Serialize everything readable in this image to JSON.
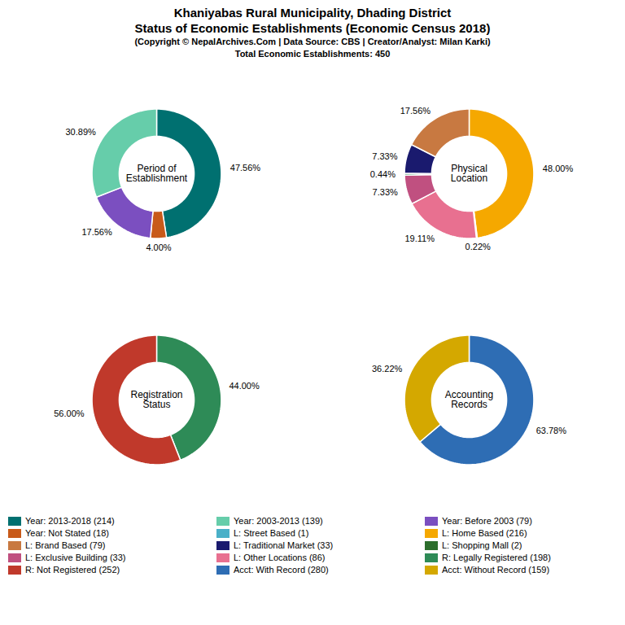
{
  "title": "Khaniyabas Rural Municipality, Dhading District\nStatus of Economic Establishments (Economic Census 2018)",
  "subtitle": [
    "(Copyright © NepalArchives.Com | Data Source: CBS | Creator/Analyst: Milan Karki)",
    "Total Economic Establishments: 450"
  ],
  "chart_data": [
    {
      "type": "pie",
      "title": "Period of\nEstablishment",
      "values": [
        47.56,
        4.0,
        17.56,
        30.89
      ],
      "value_labels": [
        "47.56%",
        "4.00%",
        "17.56%",
        "30.89%"
      ],
      "colors": [
        "#007070",
        "#c85a1a",
        "#7b4fc0",
        "#66cdaa"
      ],
      "data_labels": true
    },
    {
      "type": "pie",
      "title": "Physical\nLocation",
      "values": [
        48.0,
        0.22,
        19.11,
        7.33,
        0.44,
        7.33,
        17.56
      ],
      "value_labels": [
        "48.00%",
        "0.22%",
        "19.11%",
        "7.33%",
        "0.44%",
        "7.33%",
        "17.56%"
      ],
      "colors": [
        "#f5a800",
        "#4ab0c8",
        "#e87090",
        "#c05080",
        "#2e8b57",
        "#1a1a6e",
        "#c87941"
      ],
      "data_labels": true
    },
    {
      "type": "pie",
      "title": "Registration\nStatus",
      "values": [
        44.0,
        56.0
      ],
      "value_labels": [
        "44.00%",
        "56.00%"
      ],
      "colors": [
        "#2e8b57",
        "#c0392b"
      ],
      "data_labels": true
    },
    {
      "type": "pie",
      "title": "Accounting\nRecords",
      "values": [
        63.78,
        36.22
      ],
      "value_labels": [
        "63.78%",
        "36.22%"
      ],
      "colors": [
        "#2e6db4",
        "#d4a800"
      ],
      "data_labels": true
    }
  ],
  "legend_entries": [
    {
      "label": "Year: 2013-2018 (214)",
      "color": "#007070"
    },
    {
      "label": "Year: 2003-2013 (139)",
      "color": "#66cdaa"
    },
    {
      "label": "Year: Before 2003 (79)",
      "color": "#7b4fc0"
    },
    {
      "label": "Year: Not Stated (18)",
      "color": "#c85a1a"
    },
    {
      "label": "L: Street Based (1)",
      "color": "#4ab0c8"
    },
    {
      "label": "L: Home Based (216)",
      "color": "#f5a800"
    },
    {
      "label": "L: Brand Based (79)",
      "color": "#c87941"
    },
    {
      "label": "L: Traditional Market (33)",
      "color": "#1a1a6e"
    },
    {
      "label": "L: Shopping Mall (2)",
      "color": "#2d6e2d"
    },
    {
      "label": "L: Exclusive Building (33)",
      "color": "#c05080"
    },
    {
      "label": "L: Other Locations (86)",
      "color": "#e87090"
    },
    {
      "label": "R: Legally Registered (198)",
      "color": "#2e8b57"
    },
    {
      "label": "R: Not Registered (252)",
      "color": "#c0392b"
    },
    {
      "label": "Acct: With Record (280)",
      "color": "#2e6db4"
    },
    {
      "label": "Acct: Without Record (159)",
      "color": "#d4a800"
    }
  ]
}
